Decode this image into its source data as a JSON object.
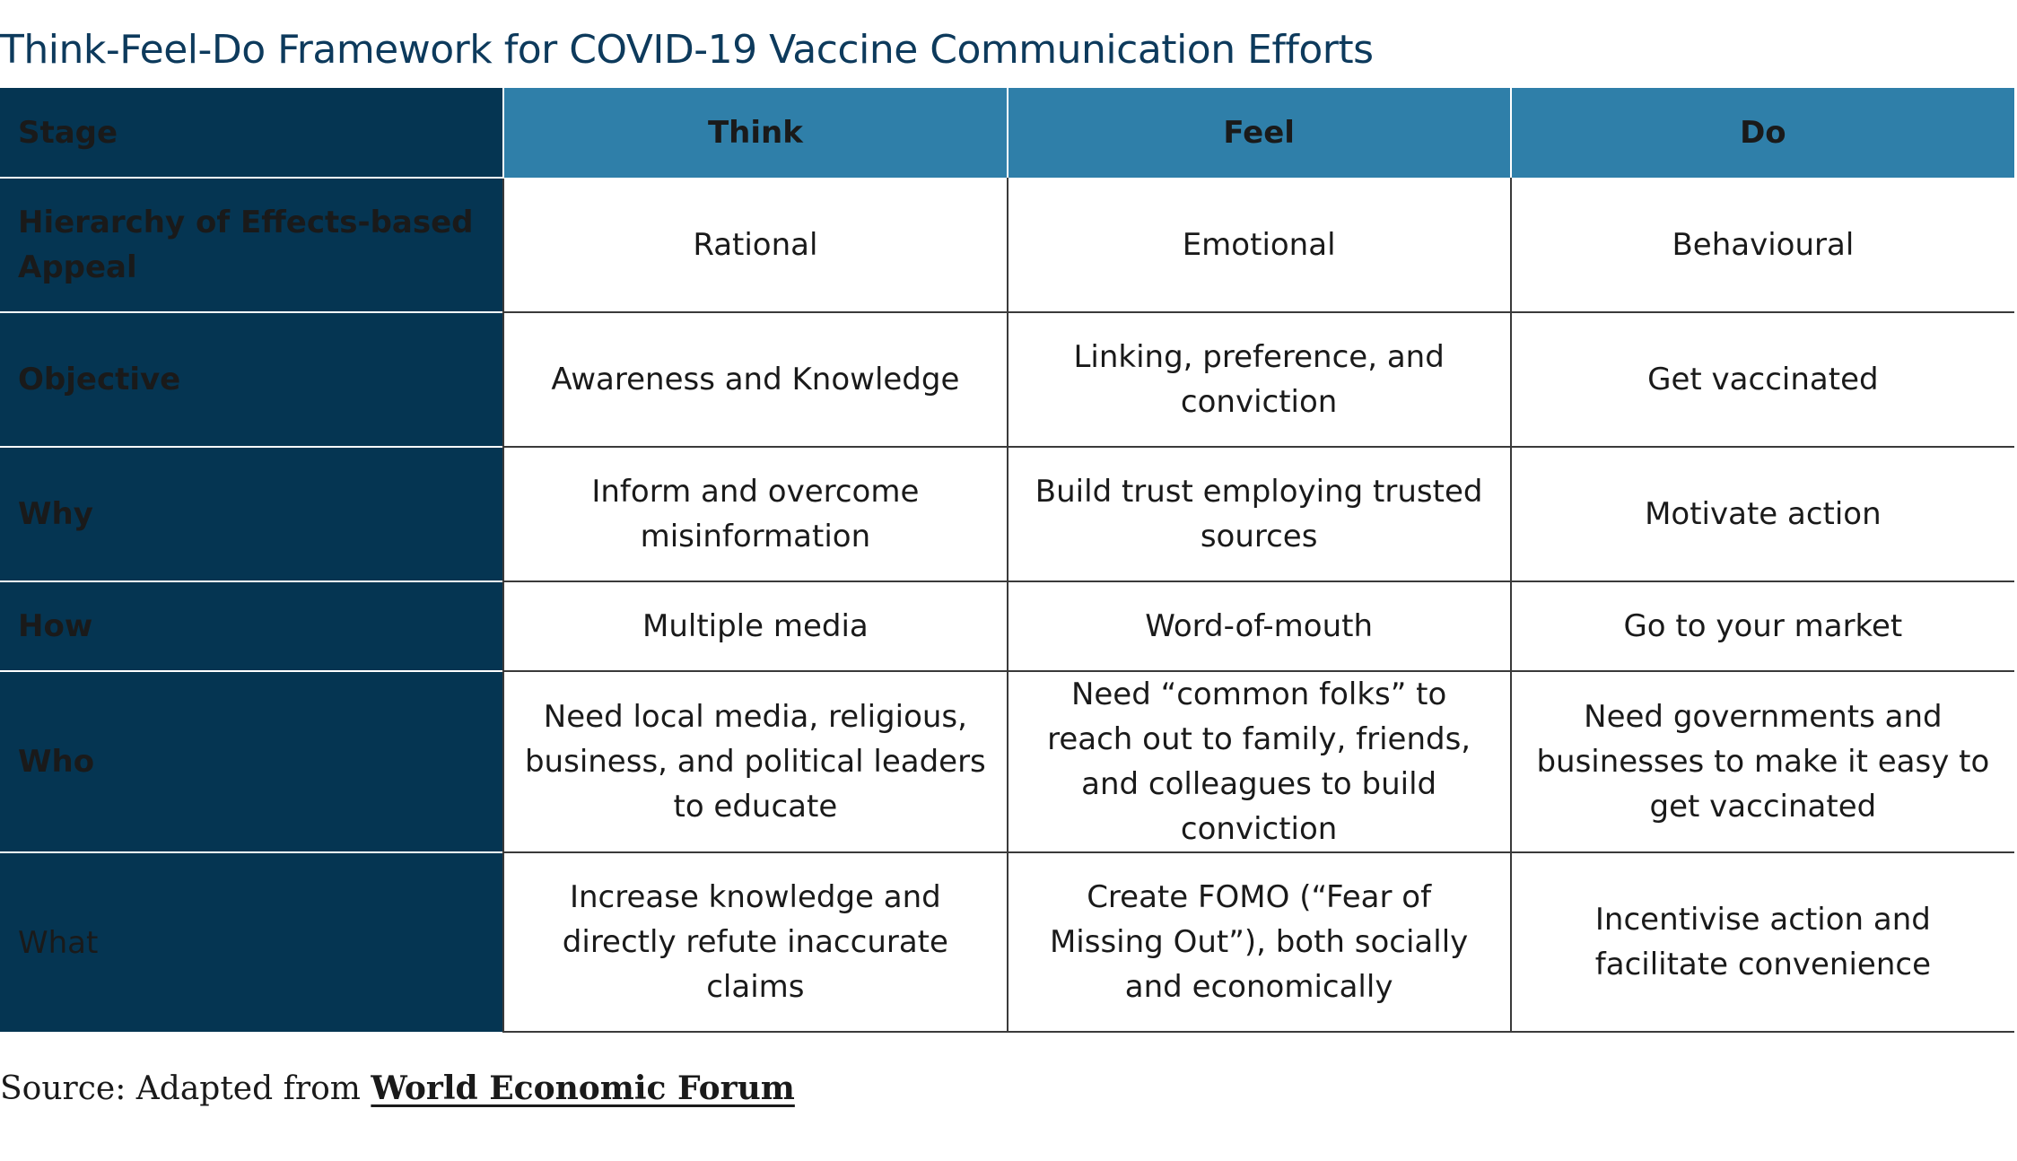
{
  "title": "Think-Feel-Do Framework for COVID-19 Vaccine Communication Efforts",
  "table": {
    "headers": [
      "Stage",
      "Think",
      "Feel",
      "Do"
    ],
    "rows": [
      {
        "stage": "Hierarchy of Effects-based Appeal",
        "think": "Rational",
        "feel": "Emotional",
        "do": "Behavioural"
      },
      {
        "stage": "Objective",
        "think": "Awareness and Knowledge",
        "feel": "Linking, preference, and conviction",
        "do": "Get vaccinated"
      },
      {
        "stage": "Why",
        "think": "Inform and overcome misinformation",
        "feel": "Build trust employing trusted sources",
        "do": "Motivate action"
      },
      {
        "stage": "How",
        "think": "Multiple media",
        "feel": "Word-of-mouth",
        "do": "Go to your market"
      },
      {
        "stage": "Who",
        "think": "Need local media, religious, business, and political leaders to educate",
        "feel": "Need “common folks” to reach out to family, friends, and colleagues to build conviction",
        "do": "Need governments and businesses to make it easy to get vaccinated"
      },
      {
        "stage": "What",
        "think": "Increase knowledge and directly refute inaccurate claims",
        "feel": "Create FOMO (“Fear of Missing Out”), both socially and economically",
        "do": "Incentivise action and facilitate convenience"
      }
    ]
  },
  "source": {
    "prefix": "Source: Adapted from ",
    "link_text": "World Economic Forum"
  },
  "colors": {
    "title": "#0d3a5c",
    "stage_column": "#053552",
    "header_row": "#2f7fa9"
  }
}
